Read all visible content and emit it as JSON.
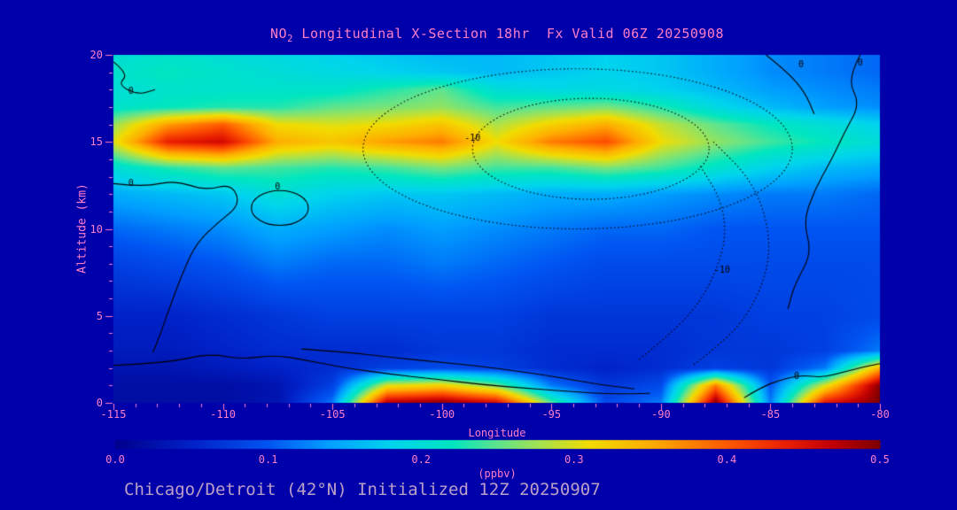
{
  "page": {
    "background": "#0000AA",
    "text_color": "#FF7EC8",
    "caption_color": "#BD9FC9"
  },
  "title": {
    "prefix": "NO",
    "sub": "2",
    "rest": " Longitudinal X-Section 18hr  Fx Valid 06Z 20250908"
  },
  "caption": "Chicago/Detroit (42°N) Initialized 12Z 20250907",
  "axes": {
    "y_label": "Altitude (km)",
    "x_label": "Longitude",
    "x_ticks": [
      -115,
      -110,
      -105,
      -100,
      -95,
      -90,
      -85,
      -80
    ],
    "y_ticks": [
      0,
      5,
      10,
      15,
      20
    ],
    "x_range": [
      -115,
      -80
    ],
    "y_range": [
      0,
      20
    ]
  },
  "colorbar": {
    "unit_label": "(ppbv)",
    "ticks": [
      "0.0",
      "0.1",
      "0.2",
      "0.3",
      "0.4",
      "0.5"
    ],
    "min": 0.0,
    "max": 0.5
  },
  "chart_data": {
    "type": "heatmap",
    "title": "NO2 Longitudinal X-Section 18hr  Fx Valid 06Z 20250908",
    "xlabel": "Longitude",
    "ylabel": "Altitude (km)",
    "unit": "ppbv",
    "xlim": [
      -115,
      -80
    ],
    "ylim": [
      0,
      20
    ],
    "vmin": 0.0,
    "vmax": 0.5,
    "x": [
      -115,
      -112.5,
      -110,
      -107.5,
      -105,
      -102.5,
      -100,
      -97.5,
      -95,
      -92.5,
      -90,
      -87.5,
      -85,
      -82.5,
      -80
    ],
    "y": [
      0,
      1,
      2,
      3,
      5,
      8,
      10,
      12,
      13.5,
      15,
      16,
      17,
      18,
      19,
      20
    ],
    "values": [
      [
        0.02,
        0.02,
        0.02,
        0.03,
        0.12,
        0.48,
        0.5,
        0.46,
        0.25,
        0.09,
        0.12,
        0.5,
        0.12,
        0.45,
        0.5
      ],
      [
        0.02,
        0.02,
        0.02,
        0.03,
        0.08,
        0.3,
        0.32,
        0.26,
        0.12,
        0.07,
        0.09,
        0.38,
        0.1,
        0.3,
        0.5
      ],
      [
        0.03,
        0.03,
        0.04,
        0.05,
        0.06,
        0.08,
        0.09,
        0.08,
        0.06,
        0.05,
        0.06,
        0.08,
        0.07,
        0.12,
        0.35
      ],
      [
        0.04,
        0.04,
        0.05,
        0.06,
        0.06,
        0.06,
        0.07,
        0.07,
        0.06,
        0.06,
        0.06,
        0.07,
        0.07,
        0.08,
        0.12
      ],
      [
        0.05,
        0.05,
        0.06,
        0.07,
        0.08,
        0.08,
        0.08,
        0.08,
        0.07,
        0.07,
        0.07,
        0.07,
        0.08,
        0.08,
        0.09
      ],
      [
        0.08,
        0.09,
        0.1,
        0.12,
        0.11,
        0.11,
        0.12,
        0.11,
        0.1,
        0.09,
        0.09,
        0.09,
        0.09,
        0.09,
        0.09
      ],
      [
        0.11,
        0.12,
        0.13,
        0.15,
        0.14,
        0.13,
        0.14,
        0.13,
        0.12,
        0.11,
        0.11,
        0.1,
        0.1,
        0.1,
        0.1
      ],
      [
        0.15,
        0.16,
        0.17,
        0.2,
        0.18,
        0.17,
        0.17,
        0.16,
        0.15,
        0.15,
        0.14,
        0.13,
        0.12,
        0.12,
        0.11
      ],
      [
        0.2,
        0.23,
        0.25,
        0.24,
        0.23,
        0.24,
        0.26,
        0.24,
        0.24,
        0.26,
        0.24,
        0.21,
        0.18,
        0.16,
        0.15
      ],
      [
        0.3,
        0.44,
        0.46,
        0.35,
        0.33,
        0.36,
        0.38,
        0.31,
        0.38,
        0.41,
        0.31,
        0.27,
        0.24,
        0.22,
        0.2
      ],
      [
        0.27,
        0.36,
        0.4,
        0.31,
        0.3,
        0.31,
        0.33,
        0.28,
        0.32,
        0.35,
        0.29,
        0.25,
        0.22,
        0.2,
        0.18
      ],
      [
        0.21,
        0.22,
        0.23,
        0.23,
        0.25,
        0.26,
        0.27,
        0.24,
        0.25,
        0.26,
        0.23,
        0.19,
        0.16,
        0.14,
        0.13
      ],
      [
        0.2,
        0.21,
        0.21,
        0.21,
        0.21,
        0.23,
        0.25,
        0.2,
        0.19,
        0.19,
        0.18,
        0.16,
        0.14,
        0.13,
        0.12
      ],
      [
        0.21,
        0.22,
        0.21,
        0.2,
        0.19,
        0.18,
        0.17,
        0.16,
        0.17,
        0.18,
        0.17,
        0.15,
        0.13,
        0.12,
        0.11
      ],
      [
        0.2,
        0.21,
        0.2,
        0.19,
        0.18,
        0.17,
        0.16,
        0.16,
        0.17,
        0.18,
        0.17,
        0.15,
        0.13,
        0.12,
        0.11
      ]
    ],
    "colormap": [
      {
        "v": 0.0,
        "color": "#00008C"
      },
      {
        "v": 0.05,
        "color": "#0022C8"
      },
      {
        "v": 0.1,
        "color": "#0055F2"
      },
      {
        "v": 0.14,
        "color": "#00A0FF"
      },
      {
        "v": 0.18,
        "color": "#00D4EE"
      },
      {
        "v": 0.22,
        "color": "#00E6C0"
      },
      {
        "v": 0.25,
        "color": "#5FE48E"
      },
      {
        "v": 0.28,
        "color": "#ACE24A"
      },
      {
        "v": 0.31,
        "color": "#F2DC00"
      },
      {
        "v": 0.35,
        "color": "#FFAE00"
      },
      {
        "v": 0.4,
        "color": "#FF5A00"
      },
      {
        "v": 0.44,
        "color": "#E81E00"
      },
      {
        "v": 0.47,
        "color": "#C00000"
      },
      {
        "v": 0.5,
        "color": "#7E0000"
      }
    ],
    "contours": [
      {
        "style": "solid",
        "type": "path",
        "label": "0",
        "label_pos": [
          -114.2,
          17.9
        ],
        "points": [
          [
            -115,
            19.6
          ],
          [
            -114.3,
            18.9
          ],
          [
            -114.8,
            18.3
          ],
          [
            -113.9,
            17.7
          ],
          [
            -113.1,
            18.0
          ]
        ]
      },
      {
        "style": "solid",
        "type": "path",
        "label": "0",
        "label_pos": [
          -114.2,
          12.6
        ],
        "points": [
          [
            -115,
            12.6
          ],
          [
            -113.6,
            12.4
          ],
          [
            -112.2,
            12.8
          ],
          [
            -110.8,
            12.2
          ],
          [
            -109.6,
            12.6
          ],
          [
            -109.2,
            11.4
          ],
          [
            -110.2,
            10.4
          ],
          [
            -111.2,
            9.2
          ],
          [
            -111.8,
            7.6
          ],
          [
            -112.4,
            5.6
          ],
          [
            -112.9,
            3.8
          ],
          [
            -113.2,
            2.9
          ]
        ]
      },
      {
        "style": "solid",
        "type": "ellipse",
        "label": "0",
        "label_pos": [
          -107.5,
          12.4
        ],
        "center": [
          -107.4,
          11.2
        ],
        "rx": 1.3,
        "ry": 1.0
      },
      {
        "style": "solid",
        "type": "path",
        "points": [
          [
            -115,
            2.15
          ],
          [
            -112.5,
            2.3
          ],
          [
            -110.6,
            2.85
          ],
          [
            -109.2,
            2.5
          ],
          [
            -107.6,
            2.75
          ],
          [
            -106.2,
            2.45
          ],
          [
            -104.6,
            2.05
          ],
          [
            -102.4,
            1.65
          ],
          [
            -100.2,
            1.35
          ],
          [
            -98.2,
            1.05
          ],
          [
            -96.2,
            0.85
          ],
          [
            -94.2,
            0.65
          ],
          [
            -92.2,
            0.5
          ],
          [
            -90.5,
            0.55
          ]
        ]
      },
      {
        "style": "solid",
        "type": "path",
        "points": [
          [
            -106.4,
            3.1
          ],
          [
            -104.2,
            2.9
          ],
          [
            -102.2,
            2.6
          ],
          [
            -100.2,
            2.35
          ],
          [
            -98.2,
            2.1
          ],
          [
            -96.4,
            1.8
          ],
          [
            -94.6,
            1.45
          ],
          [
            -92.8,
            1.05
          ],
          [
            -91.2,
            0.8
          ]
        ]
      },
      {
        "style": "solid",
        "type": "path",
        "label": "0",
        "label_pos": [
          -83.8,
          1.5
        ],
        "points": [
          [
            -86.2,
            0.3
          ],
          [
            -85.4,
            0.9
          ],
          [
            -84.6,
            1.3
          ],
          [
            -83.6,
            1.6
          ],
          [
            -82.6,
            1.45
          ],
          [
            -81.6,
            1.8
          ],
          [
            -80.6,
            2.1
          ],
          [
            -80,
            2.25
          ]
        ]
      },
      {
        "style": "solid",
        "type": "path",
        "label": "0",
        "label_pos": [
          -80.9,
          19.5
        ],
        "points": [
          [
            -80.9,
            20
          ],
          [
            -81.5,
            18.6
          ],
          [
            -80.9,
            17.2
          ],
          [
            -81.6,
            15.6
          ],
          [
            -82.2,
            14.0
          ],
          [
            -83.0,
            12.2
          ],
          [
            -83.5,
            10.4
          ],
          [
            -83.1,
            8.6
          ],
          [
            -83.9,
            6.8
          ],
          [
            -84.2,
            5.4
          ]
        ]
      },
      {
        "style": "solid",
        "type": "path",
        "label": "0",
        "label_pos": [
          -83.6,
          19.4
        ],
        "points": [
          [
            -85.2,
            20
          ],
          [
            -84.2,
            19.0
          ],
          [
            -83.4,
            17.8
          ],
          [
            -83.0,
            16.6
          ]
        ]
      },
      {
        "style": "dotted",
        "type": "ellipse",
        "label": "-10",
        "label_pos": [
          -98.6,
          15.2
        ],
        "center": [
          -93.8,
          14.6
        ],
        "rx": 9.8,
        "ry": 4.6
      },
      {
        "style": "dotted",
        "type": "ellipse",
        "center": [
          -93.2,
          14.6
        ],
        "rx": 5.4,
        "ry": 2.9
      },
      {
        "style": "dotted",
        "type": "path",
        "label": "-10",
        "label_pos": [
          -87.2,
          7.6
        ],
        "points": [
          [
            -91.0,
            2.5
          ],
          [
            -89.5,
            4.0
          ],
          [
            -88.2,
            5.8
          ],
          [
            -87.4,
            7.8
          ],
          [
            -87.0,
            9.8
          ],
          [
            -87.3,
            11.8
          ],
          [
            -88.2,
            13.6
          ]
        ]
      },
      {
        "style": "dotted",
        "type": "path",
        "points": [
          [
            -88.5,
            2.2
          ],
          [
            -86.8,
            3.8
          ],
          [
            -85.6,
            6.0
          ],
          [
            -85.0,
            8.4
          ],
          [
            -85.2,
            10.8
          ],
          [
            -86.0,
            13.0
          ],
          [
            -87.6,
            15.0
          ]
        ]
      }
    ],
    "legend_position": "bottom-colorbar",
    "grid": false
  }
}
